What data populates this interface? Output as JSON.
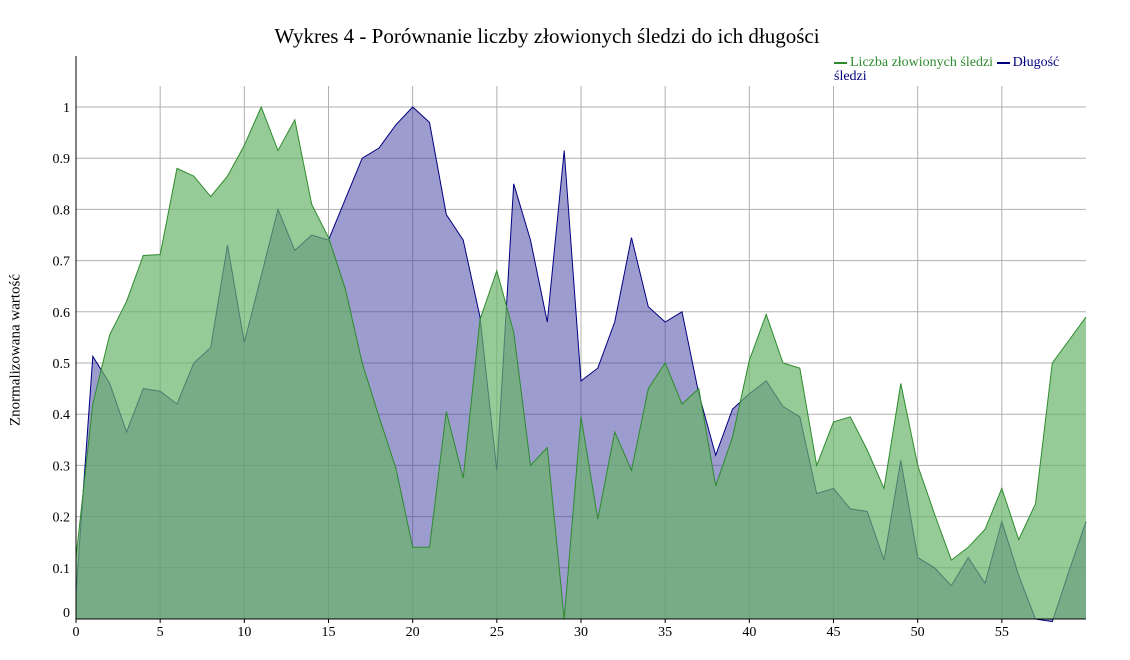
{
  "chart_data": {
    "type": "area",
    "title": "Wykres 4 - Porównanie liczby złowionych śledzi do ich długości",
    "xlabel": "",
    "ylabel": "Znormalizowana wartość",
    "xlim": [
      0,
      60
    ],
    "ylim": [
      0,
      1.05
    ],
    "x_ticks": [
      0,
      5,
      10,
      15,
      20,
      25,
      30,
      35,
      40,
      45,
      50,
      55
    ],
    "y_ticks": [
      0,
      0.1,
      0.2,
      0.3,
      0.4,
      0.5,
      0.6,
      0.7,
      0.8,
      0.9,
      1
    ],
    "grid": true,
    "legend_position": "top-right",
    "series": [
      {
        "name": "Liczba złowionych śledzi",
        "color": "#2e8b2e",
        "fill": "#6ab46a",
        "values": [
          0.12,
          0.42,
          0.555,
          0.62,
          0.71,
          0.712,
          0.88,
          0.865,
          0.825,
          0.865,
          0.925,
          1.0,
          0.915,
          0.975,
          0.81,
          0.745,
          0.645,
          0.5,
          0.395,
          0.295,
          0.14,
          0.14,
          0.405,
          0.275,
          0.585,
          0.68,
          0.56,
          0.3,
          0.335,
          0.0,
          0.395,
          0.195,
          0.365,
          0.29,
          0.45,
          0.5,
          0.42,
          0.45,
          0.26,
          0.355,
          0.505,
          0.595,
          0.5,
          0.49,
          0.3,
          0.385,
          0.395,
          0.33,
          0.255,
          0.46,
          0.3,
          0.205,
          0.115,
          0.14,
          0.175,
          0.255,
          0.155,
          0.225,
          0.5,
          0.545,
          0.59
        ]
      },
      {
        "name": "Długość śledzi",
        "color": "#000080",
        "fill": "#3a3a9e",
        "values": [
          0.05,
          0.513,
          0.46,
          0.365,
          0.45,
          0.445,
          0.42,
          0.5,
          0.53,
          0.73,
          0.54,
          0.67,
          0.8,
          0.72,
          0.75,
          0.74,
          0.82,
          0.9,
          0.92,
          0.965,
          1.0,
          0.97,
          0.79,
          0.74,
          0.59,
          0.29,
          0.85,
          0.74,
          0.58,
          0.915,
          0.465,
          0.49,
          0.58,
          0.745,
          0.61,
          0.58,
          0.6,
          0.44,
          0.32,
          0.41,
          0.44,
          0.465,
          0.415,
          0.395,
          0.245,
          0.255,
          0.215,
          0.21,
          0.115,
          0.31,
          0.12,
          0.1,
          0.065,
          0.12,
          0.07,
          0.19,
          0.085,
          0.0,
          -0.005,
          0.095,
          0.19
        ]
      }
    ]
  }
}
